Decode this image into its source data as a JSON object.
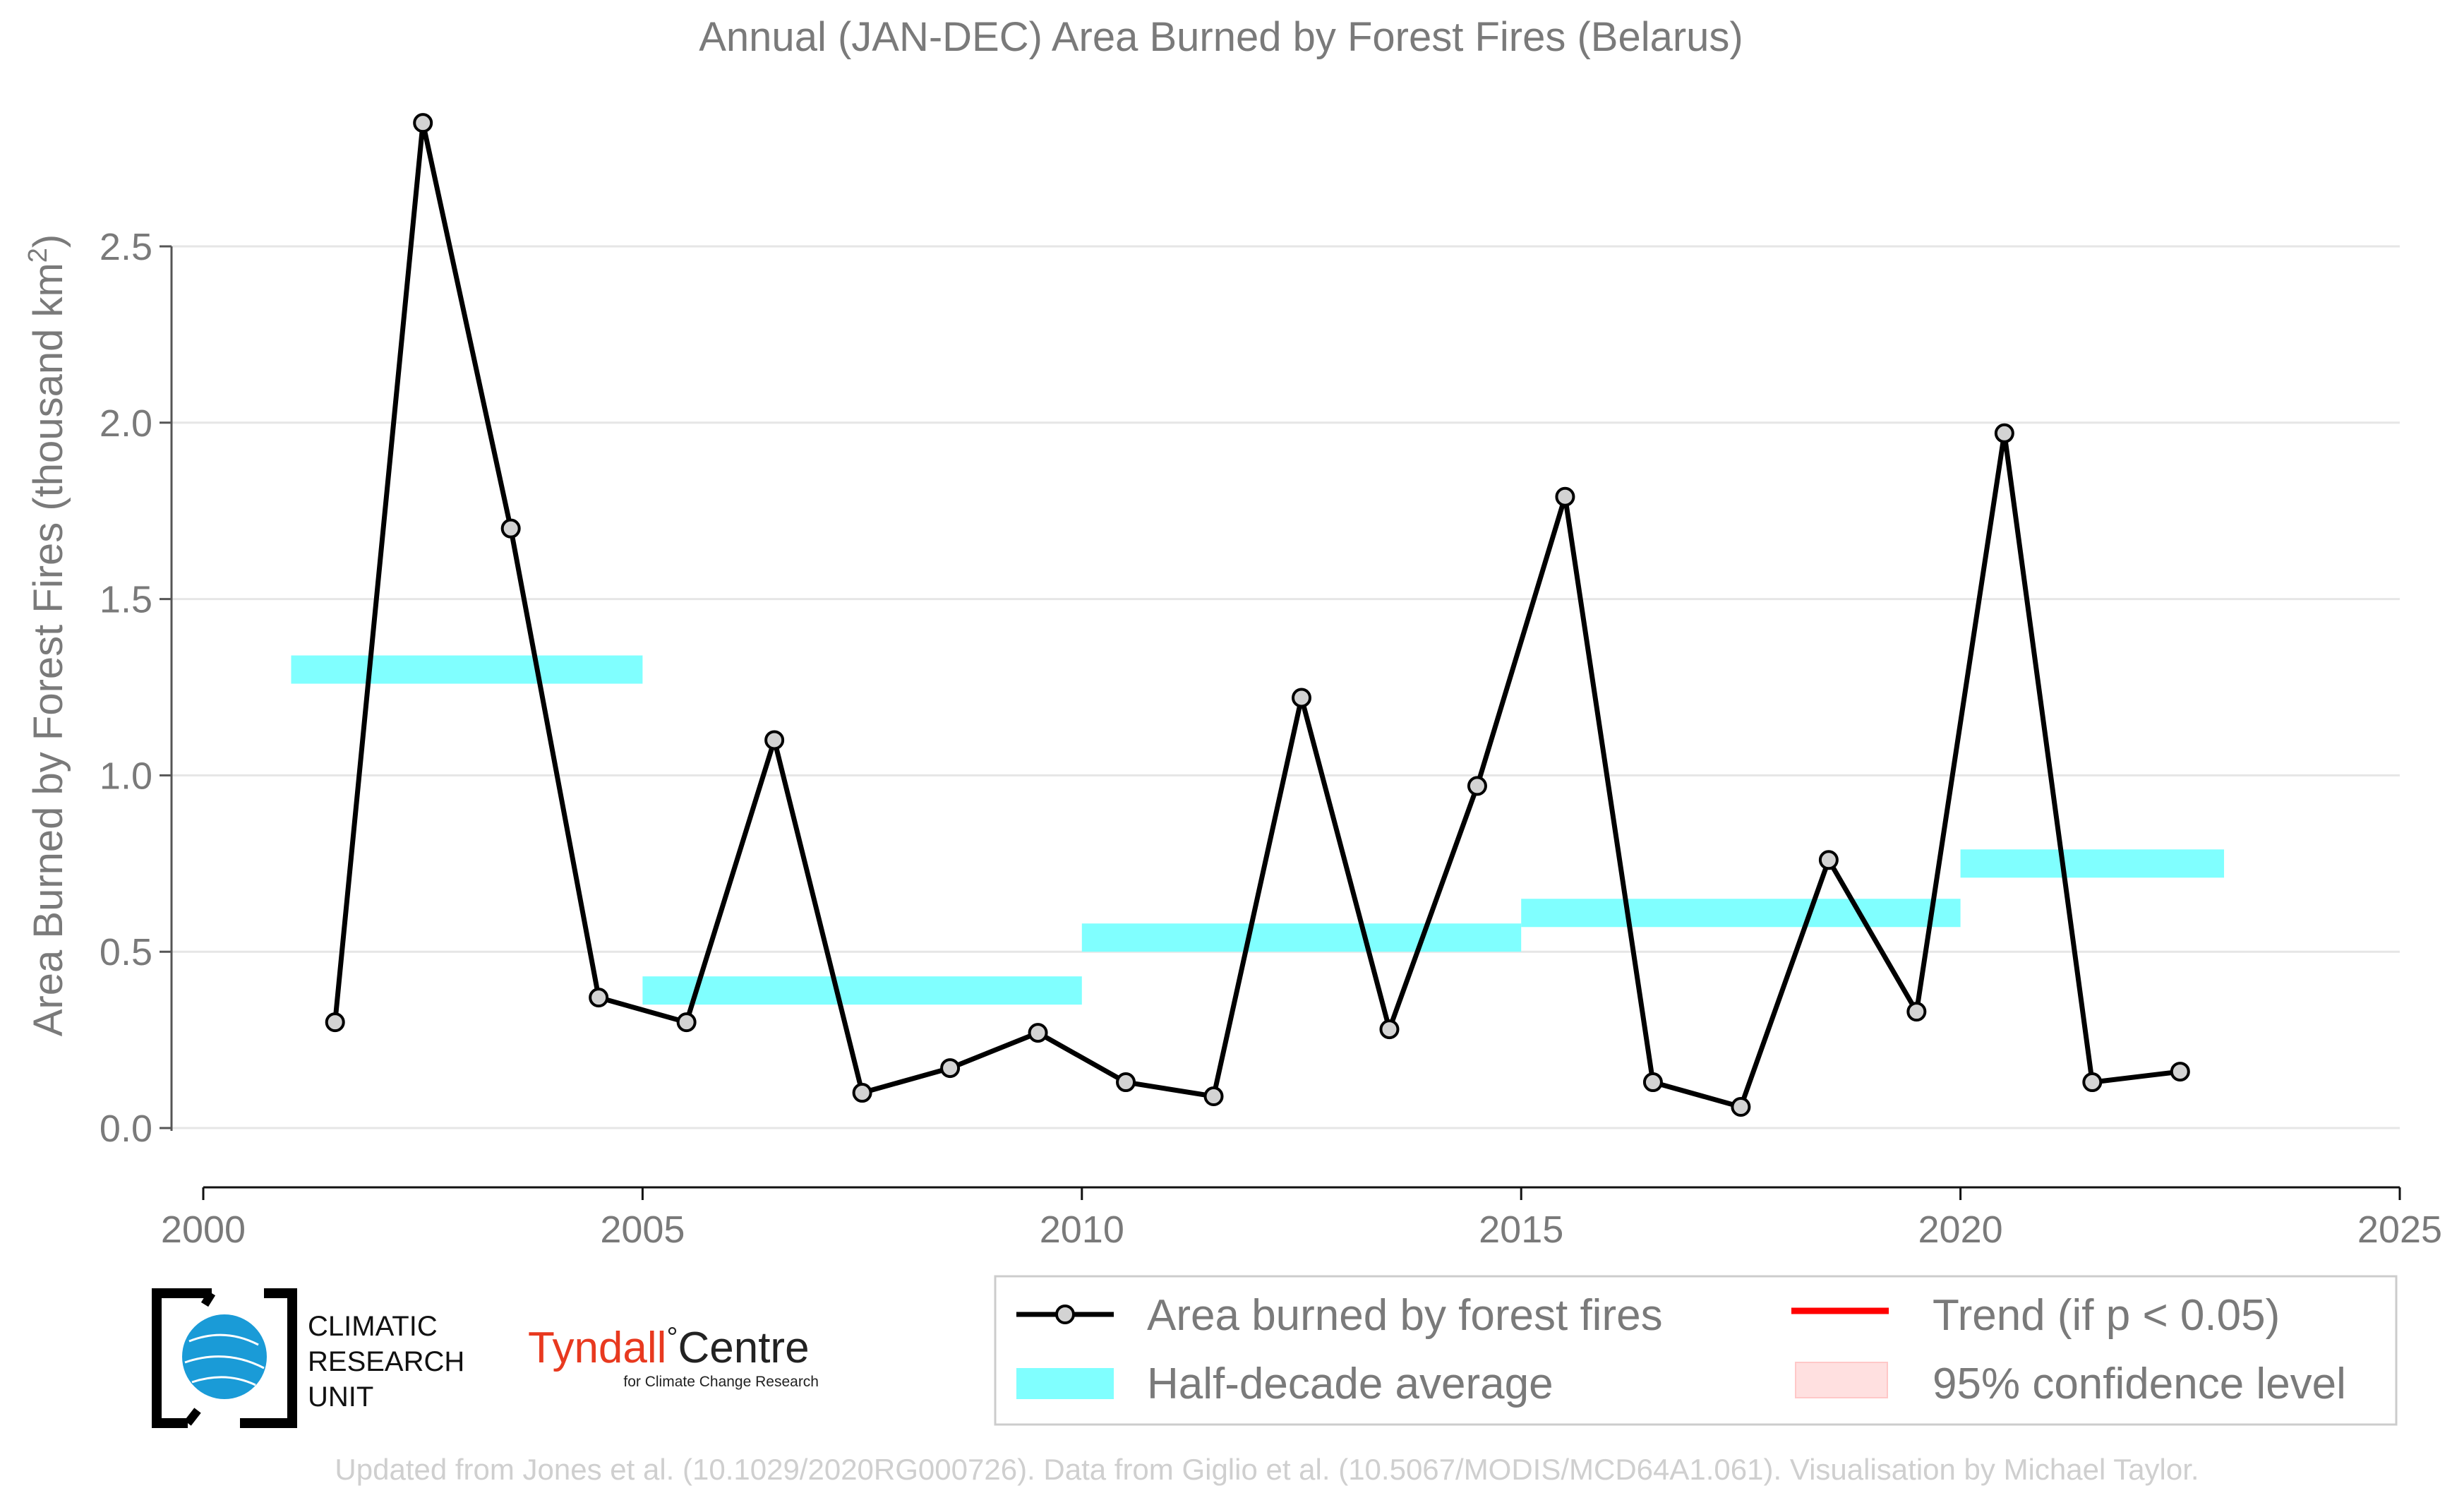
{
  "colors": {
    "series_line": "#000000",
    "marker_fill": "#d3d3d3",
    "half_decade": "#80ffff",
    "trend": "#ff0000",
    "confidence": "#ffe0e0",
    "text": "#7a7a7a",
    "grid": "#e6e6e6",
    "credit": "#cfcfcf",
    "tyndall_red": "#e8391f",
    "cru_blue": "#1a9bd7"
  },
  "chart_data": {
    "type": "line",
    "title": "Annual (JAN-DEC) Area Burned by Forest Fires (Belarus)",
    "ylabel": "Area Burned by Forest Fires (thousand km",
    "ylabel_superscript": "2",
    "ylabel_suffix": ")",
    "xlabel": "",
    "xlim": [
      2000,
      2025
    ],
    "ylim": [
      -0.1,
      2.9
    ],
    "grid": true,
    "legend_position": "bottom-right",
    "x_ticks": [
      2000,
      2005,
      2010,
      2015,
      2020,
      2025
    ],
    "x_tick_labels": [
      "2000",
      "2005",
      "2010",
      "2015",
      "2020",
      "2025"
    ],
    "y_ticks": [
      0.0,
      0.5,
      1.0,
      1.5,
      2.0,
      2.5
    ],
    "y_tick_labels": [
      "0.0",
      "0.5",
      "1.0",
      "1.5",
      "2.0",
      "2.5"
    ],
    "series": [
      {
        "name": "Area burned by forest fires",
        "x": [
          2001.5,
          2002.5,
          2003.5,
          2004.5,
          2005.5,
          2006.5,
          2007.5,
          2008.5,
          2009.5,
          2010.5,
          2011.5,
          2012.5,
          2013.5,
          2014.5,
          2015.5,
          2016.5,
          2017.5,
          2018.5,
          2019.5,
          2020.5,
          2021.5,
          2022.5
        ],
        "values": [
          0.3,
          2.85,
          1.7,
          0.37,
          0.3,
          1.1,
          0.1,
          0.17,
          0.27,
          0.13,
          0.09,
          1.22,
          0.28,
          0.97,
          1.79,
          0.13,
          0.06,
          0.76,
          0.33,
          1.97,
          0.13,
          0.16
        ]
      }
    ],
    "half_decade_average": {
      "name": "Half-decade average",
      "segments": [
        {
          "x_start": 2001,
          "x_end": 2005,
          "value": 1.3
        },
        {
          "x_start": 2005,
          "x_end": 2010,
          "value": 0.39
        },
        {
          "x_start": 2010,
          "x_end": 2015,
          "value": 0.54
        },
        {
          "x_start": 2015,
          "x_end": 2020,
          "value": 0.61
        },
        {
          "x_start": 2020,
          "x_end": 2023,
          "value": 0.75
        }
      ]
    },
    "legend": [
      {
        "label": "Area burned by forest fires",
        "kind": "line-marker"
      },
      {
        "label": "Trend (if p < 0.05)",
        "kind": "trend"
      },
      {
        "label": "Half-decade average",
        "kind": "band"
      },
      {
        "label": "95% confidence level",
        "kind": "confidence"
      }
    ]
  },
  "logos": {
    "cru_lines": [
      "CLIMATIC",
      "RESEARCH",
      "UNIT"
    ],
    "tyndall_name": "Tyndall",
    "tyndall_degree": "°",
    "tyndall_centre": "Centre",
    "tyndall_sub": "for Climate Change Research"
  },
  "credit": "Updated from Jones et al. (10.1029/2020RG000726). Data from Giglio et al. (10.5067/MODIS/MCD64A1.061). Visualisation by Michael Taylor."
}
